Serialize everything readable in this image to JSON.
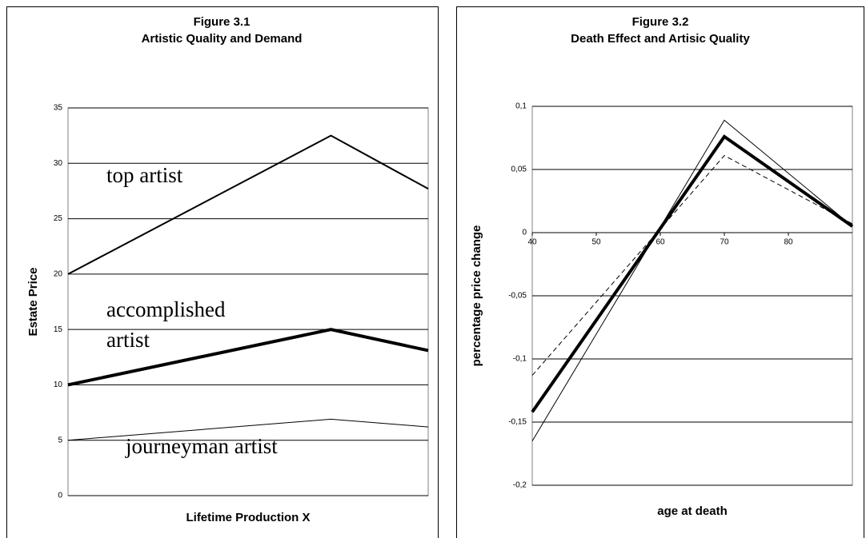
{
  "chart_data": [
    {
      "type": "line",
      "title": "Figure 3.1",
      "subtitle": "Artistic Quality and Demand",
      "y_label": "Estate Price",
      "x_label": "Lifetime Production X",
      "x": [
        0,
        73,
        100
      ],
      "xlim": [
        0,
        100
      ],
      "ylim": [
        0,
        35
      ],
      "yticks": [
        0,
        5,
        10,
        15,
        20,
        25,
        30,
        35
      ],
      "grid": true,
      "series": [
        {
          "color": "#000000",
          "linestyle": "solid",
          "values": [
            20,
            32.5,
            27.7
          ]
        },
        {
          "color": "#000000",
          "linestyle": "solid",
          "values": [
            10,
            15,
            13.1
          ]
        },
        {
          "color": "#000000",
          "linestyle": "solid",
          "values": [
            5,
            6.9,
            6.2
          ]
        }
      ],
      "annotations": [
        "top artist",
        "accomplished",
        "artist",
        "journeyman artist"
      ]
    },
    {
      "type": "line",
      "title": "Figure 3.2",
      "subtitle": "Death Effect and Artisic Quality",
      "y_label": "percentage price change",
      "x_label": "age at death",
      "x": [
        40,
        70,
        90
      ],
      "xlim": [
        40,
        90
      ],
      "xticks": [
        40,
        50,
        60,
        70,
        80
      ],
      "ylim": [
        -0.2,
        0.1
      ],
      "yticks": [
        {
          "value": -0.2,
          "label": "-0,2"
        },
        {
          "value": -0.15,
          "label": "-0,15"
        },
        {
          "value": -0.1,
          "label": "-0,1"
        },
        {
          "value": -0.05,
          "label": "-0,05"
        },
        0,
        {
          "value": 0.05,
          "label": "0,05"
        },
        {
          "value": 0.1,
          "label": "0,1"
        }
      ],
      "grid": true,
      "series": [
        {
          "color": "#000000",
          "linestyle": "solid",
          "values": [
            -0.142,
            0.076,
            0.005
          ]
        },
        {
          "color": "#000000",
          "linestyle": "dashed",
          "values": [
            -0.113,
            0.061,
            0.007
          ]
        },
        {
          "color": "#000000",
          "linestyle": "solid",
          "values": [
            -0.165,
            0.089,
            0.005
          ]
        }
      ]
    }
  ]
}
